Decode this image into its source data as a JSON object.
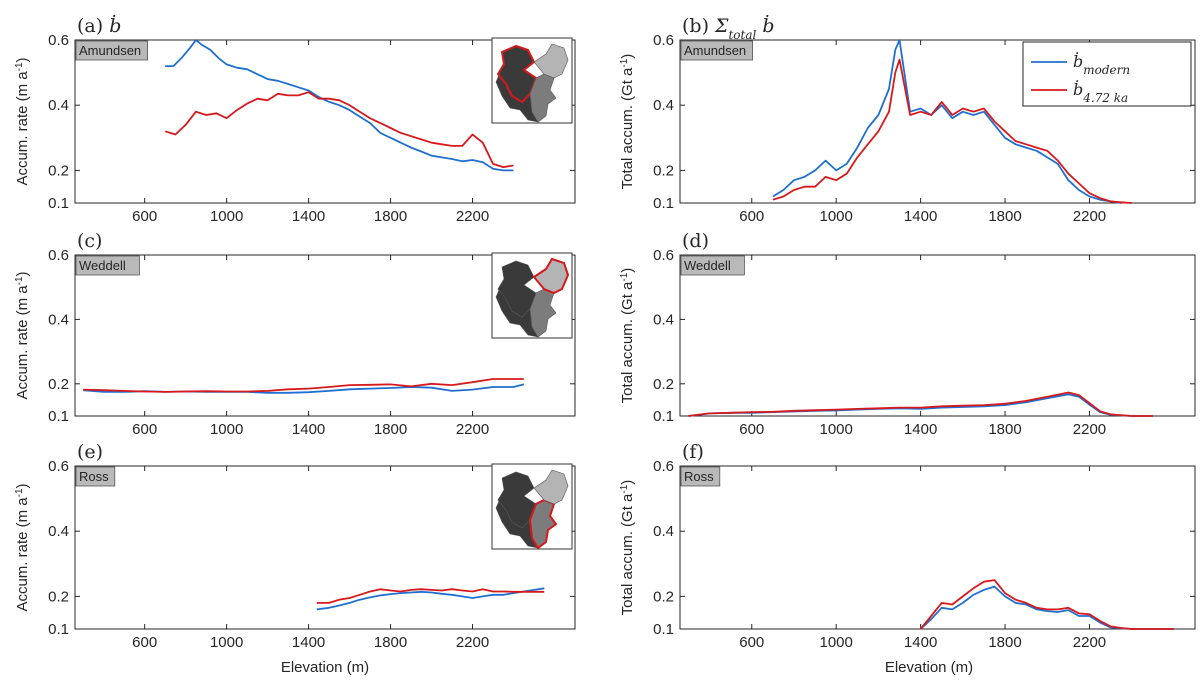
{
  "figure": {
    "xlabel": "Elevation (m)",
    "series": [
      {
        "name": "modern",
        "color": "#1f6fd1"
      },
      {
        "name": "4.72 ka",
        "color": "#d7191c"
      }
    ]
  },
  "chart_data": [
    {
      "type": "line",
      "panel_label": "(a)",
      "panel_symbol": "ḃ",
      "region": "Amundsen",
      "ylabel": "Accum. rate (m a",
      "ylabel_sup": "-1",
      "ylabel_close": ")",
      "xlim": [
        260,
        2700
      ],
      "ylim": [
        0.1,
        0.6
      ],
      "xticks": [
        600,
        1000,
        1400,
        1800,
        2200
      ],
      "yticks": [
        0.1,
        0.2,
        0.4,
        0.6
      ],
      "inset_highlight": "amundsen",
      "series": [
        {
          "name": "modern",
          "x": [
            700,
            740,
            780,
            820,
            850,
            880,
            920,
            960,
            1000,
            1050,
            1100,
            1150,
            1200,
            1250,
            1300,
            1350,
            1400,
            1450,
            1500,
            1550,
            1600,
            1650,
            1700,
            1750,
            1800,
            1850,
            1900,
            1950,
            2000,
            2050,
            2100,
            2150,
            2200,
            2250,
            2300,
            2350,
            2400
          ],
          "y": [
            0.52,
            0.52,
            0.545,
            0.575,
            0.6,
            0.585,
            0.57,
            0.545,
            0.525,
            0.515,
            0.51,
            0.495,
            0.48,
            0.475,
            0.465,
            0.455,
            0.445,
            0.425,
            0.41,
            0.4,
            0.385,
            0.365,
            0.345,
            0.315,
            0.3,
            0.285,
            0.27,
            0.258,
            0.245,
            0.24,
            0.235,
            0.228,
            0.232,
            0.225,
            0.205,
            0.2,
            0.2
          ]
        },
        {
          "name": "4.72 ka",
          "x": [
            700,
            750,
            800,
            850,
            900,
            950,
            1000,
            1050,
            1100,
            1150,
            1200,
            1250,
            1300,
            1350,
            1400,
            1450,
            1500,
            1550,
            1600,
            1650,
            1700,
            1750,
            1800,
            1850,
            1900,
            1950,
            2000,
            2050,
            2100,
            2150,
            2200,
            2250,
            2300,
            2350,
            2400
          ],
          "y": [
            0.32,
            0.31,
            0.34,
            0.38,
            0.37,
            0.375,
            0.36,
            0.385,
            0.405,
            0.42,
            0.415,
            0.435,
            0.43,
            0.43,
            0.44,
            0.42,
            0.42,
            0.415,
            0.4,
            0.38,
            0.36,
            0.345,
            0.33,
            0.315,
            0.305,
            0.295,
            0.285,
            0.28,
            0.275,
            0.275,
            0.31,
            0.285,
            0.22,
            0.21,
            0.215
          ]
        }
      ]
    },
    {
      "type": "line",
      "panel_label": "(b)",
      "panel_symbol": "Σ",
      "panel_symbol_sub": "total",
      "panel_symbol_tail": "ḃ",
      "region": "Amundsen",
      "ylabel": "Total accum. (Gt a",
      "ylabel_sup": "-1",
      "ylabel_close": ")",
      "xlim": [
        260,
        2700
      ],
      "ylim": [
        0.1,
        0.6
      ],
      "xticks": [
        600,
        1000,
        1400,
        1800,
        2200
      ],
      "yticks": [
        0.1,
        0.2,
        0.4,
        0.6
      ],
      "legend": {
        "modern_base": "ḃ",
        "modern_sub": "modern",
        "paleo_base": "ḃ",
        "paleo_sub": "4.72 ka"
      },
      "series": [
        {
          "name": "modern",
          "x": [
            700,
            750,
            800,
            850,
            900,
            950,
            1000,
            1050,
            1100,
            1150,
            1200,
            1250,
            1280,
            1300,
            1350,
            1400,
            1450,
            1500,
            1550,
            1600,
            1650,
            1700,
            1750,
            1800,
            1850,
            1900,
            1950,
            2000,
            2050,
            2100,
            2150,
            2200,
            2250,
            2300,
            2350
          ],
          "y": [
            0.12,
            0.14,
            0.17,
            0.18,
            0.2,
            0.23,
            0.2,
            0.22,
            0.27,
            0.33,
            0.37,
            0.45,
            0.57,
            0.6,
            0.38,
            0.39,
            0.37,
            0.4,
            0.36,
            0.38,
            0.37,
            0.38,
            0.34,
            0.3,
            0.28,
            0.27,
            0.26,
            0.24,
            0.22,
            0.17,
            0.14,
            0.12,
            0.11,
            0.105,
            0.1
          ]
        },
        {
          "name": "4.72 ka",
          "x": [
            700,
            750,
            800,
            850,
            900,
            950,
            1000,
            1050,
            1100,
            1150,
            1200,
            1250,
            1280,
            1300,
            1350,
            1400,
            1450,
            1500,
            1550,
            1600,
            1650,
            1700,
            1750,
            1800,
            1850,
            1900,
            1950,
            2000,
            2050,
            2100,
            2150,
            2200,
            2250,
            2300,
            2350,
            2400
          ],
          "y": [
            0.11,
            0.12,
            0.14,
            0.15,
            0.15,
            0.18,
            0.17,
            0.19,
            0.24,
            0.28,
            0.32,
            0.38,
            0.5,
            0.54,
            0.37,
            0.38,
            0.37,
            0.41,
            0.37,
            0.39,
            0.38,
            0.39,
            0.35,
            0.32,
            0.29,
            0.28,
            0.27,
            0.26,
            0.23,
            0.19,
            0.16,
            0.13,
            0.115,
            0.105,
            0.102,
            0.1
          ]
        }
      ]
    },
    {
      "type": "line",
      "panel_label": "(c)",
      "region": "Weddell",
      "ylabel": "Accum. rate (m a",
      "ylabel_sup": "-1",
      "ylabel_close": ")",
      "xlim": [
        260,
        2700
      ],
      "ylim": [
        0.1,
        0.6
      ],
      "xticks": [
        600,
        1000,
        1400,
        1800,
        2200
      ],
      "yticks": [
        0.1,
        0.2,
        0.4,
        0.6
      ],
      "inset_highlight": "weddell",
      "series": [
        {
          "name": "modern",
          "x": [
            300,
            400,
            500,
            600,
            700,
            800,
            900,
            1000,
            1100,
            1200,
            1300,
            1400,
            1500,
            1600,
            1700,
            1800,
            1900,
            2000,
            2100,
            2200,
            2300,
            2400,
            2450
          ],
          "y": [
            0.18,
            0.175,
            0.175,
            0.177,
            0.175,
            0.176,
            0.175,
            0.175,
            0.175,
            0.172,
            0.172,
            0.174,
            0.178,
            0.183,
            0.185,
            0.187,
            0.19,
            0.188,
            0.178,
            0.182,
            0.19,
            0.19,
            0.198
          ]
        },
        {
          "name": "4.72 ka",
          "x": [
            300,
            400,
            500,
            600,
            700,
            800,
            900,
            1000,
            1100,
            1200,
            1300,
            1400,
            1500,
            1600,
            1700,
            1800,
            1900,
            2000,
            2100,
            2200,
            2300,
            2400,
            2450
          ],
          "y": [
            0.182,
            0.18,
            0.178,
            0.176,
            0.175,
            0.176,
            0.177,
            0.176,
            0.176,
            0.178,
            0.183,
            0.185,
            0.19,
            0.196,
            0.197,
            0.198,
            0.192,
            0.2,
            0.196,
            0.205,
            0.215,
            0.215,
            0.215
          ]
        }
      ]
    },
    {
      "type": "line",
      "panel_label": "(d)",
      "region": "Weddell",
      "ylabel": "Total accum. (Gt a",
      "ylabel_sup": "-1",
      "ylabel_close": ")",
      "xlim": [
        260,
        2700
      ],
      "ylim": [
        0.1,
        0.6
      ],
      "xticks": [
        600,
        1000,
        1400,
        1800,
        2200
      ],
      "yticks": [
        0.1,
        0.2,
        0.4,
        0.6
      ],
      "series": [
        {
          "name": "modern",
          "x": [
            300,
            400,
            500,
            600,
            700,
            800,
            900,
            1000,
            1100,
            1200,
            1300,
            1400,
            1500,
            1600,
            1700,
            1800,
            1900,
            2000,
            2100,
            2150,
            2200,
            2250,
            2300,
            2400,
            2500
          ],
          "y": [
            0.1,
            0.108,
            0.11,
            0.11,
            0.112,
            0.114,
            0.116,
            0.117,
            0.12,
            0.122,
            0.124,
            0.122,
            0.126,
            0.128,
            0.13,
            0.134,
            0.143,
            0.155,
            0.167,
            0.16,
            0.135,
            0.112,
            0.104,
            0.1,
            0.1
          ]
        },
        {
          "name": "4.72 ka",
          "x": [
            300,
            400,
            500,
            600,
            700,
            800,
            900,
            1000,
            1100,
            1200,
            1300,
            1400,
            1500,
            1600,
            1700,
            1800,
            1900,
            2000,
            2100,
            2150,
            2200,
            2250,
            2300,
            2400,
            2500
          ],
          "y": [
            0.1,
            0.108,
            0.11,
            0.112,
            0.113,
            0.116,
            0.118,
            0.12,
            0.122,
            0.124,
            0.126,
            0.126,
            0.13,
            0.132,
            0.134,
            0.138,
            0.147,
            0.16,
            0.173,
            0.165,
            0.14,
            0.115,
            0.105,
            0.1,
            0.1
          ]
        }
      ]
    },
    {
      "type": "line",
      "panel_label": "(e)",
      "region": "Ross",
      "ylabel": "Accum. rate (m a",
      "ylabel_sup": "-1",
      "ylabel_close": ")",
      "xlim": [
        260,
        2700
      ],
      "ylim": [
        0.1,
        0.6
      ],
      "xticks": [
        600,
        1000,
        1400,
        1800,
        2200
      ],
      "yticks": [
        0.1,
        0.2,
        0.4,
        0.6
      ],
      "inset_highlight": "ross",
      "series": [
        {
          "name": "modern",
          "x": [
            1440,
            1500,
            1550,
            1600,
            1650,
            1700,
            1750,
            1800,
            1850,
            1900,
            1950,
            2000,
            2050,
            2100,
            2150,
            2200,
            2250,
            2300,
            2350,
            2400,
            2450,
            2500,
            2550
          ],
          "y": [
            0.16,
            0.165,
            0.172,
            0.18,
            0.19,
            0.197,
            0.203,
            0.207,
            0.21,
            0.212,
            0.214,
            0.212,
            0.208,
            0.205,
            0.2,
            0.195,
            0.2,
            0.205,
            0.205,
            0.21,
            0.215,
            0.22,
            0.225
          ]
        },
        {
          "name": "4.72 ka",
          "x": [
            1440,
            1500,
            1550,
            1600,
            1650,
            1700,
            1750,
            1800,
            1850,
            1900,
            1950,
            2000,
            2050,
            2100,
            2150,
            2200,
            2250,
            2300,
            2350,
            2400,
            2450,
            2500,
            2550
          ],
          "y": [
            0.18,
            0.18,
            0.19,
            0.195,
            0.205,
            0.215,
            0.222,
            0.218,
            0.215,
            0.22,
            0.222,
            0.22,
            0.218,
            0.222,
            0.218,
            0.215,
            0.222,
            0.215,
            0.215,
            0.214,
            0.214,
            0.214,
            0.214
          ]
        }
      ]
    },
    {
      "type": "line",
      "panel_label": "(f)",
      "region": "Ross",
      "ylabel": "Total accum. (Gt a",
      "ylabel_sup": "-1",
      "ylabel_close": ")",
      "xlim": [
        260,
        2700
      ],
      "ylim": [
        0.1,
        0.6
      ],
      "xticks": [
        600,
        1000,
        1400,
        1800,
        2200
      ],
      "yticks": [
        0.1,
        0.2,
        0.4,
        0.6
      ],
      "series": [
        {
          "name": "modern",
          "x": [
            1400,
            1450,
            1500,
            1550,
            1600,
            1650,
            1700,
            1750,
            1800,
            1850,
            1900,
            1950,
            2000,
            2050,
            2100,
            2150,
            2200,
            2250,
            2300,
            2350,
            2400,
            2500,
            2600
          ],
          "y": [
            0.1,
            0.13,
            0.165,
            0.16,
            0.18,
            0.205,
            0.22,
            0.23,
            0.2,
            0.18,
            0.175,
            0.16,
            0.155,
            0.152,
            0.158,
            0.14,
            0.14,
            0.12,
            0.105,
            0.102,
            0.1,
            0.1,
            0.1
          ]
        },
        {
          "name": "4.72 ka",
          "x": [
            1400,
            1450,
            1500,
            1550,
            1600,
            1650,
            1700,
            1750,
            1800,
            1850,
            1900,
            1950,
            2000,
            2050,
            2100,
            2150,
            2200,
            2250,
            2300,
            2350,
            2400,
            2500,
            2600
          ],
          "y": [
            0.1,
            0.14,
            0.18,
            0.175,
            0.2,
            0.225,
            0.245,
            0.25,
            0.21,
            0.19,
            0.18,
            0.165,
            0.16,
            0.16,
            0.165,
            0.148,
            0.145,
            0.125,
            0.108,
            0.103,
            0.1,
            0.1,
            0.1
          ]
        }
      ]
    }
  ]
}
